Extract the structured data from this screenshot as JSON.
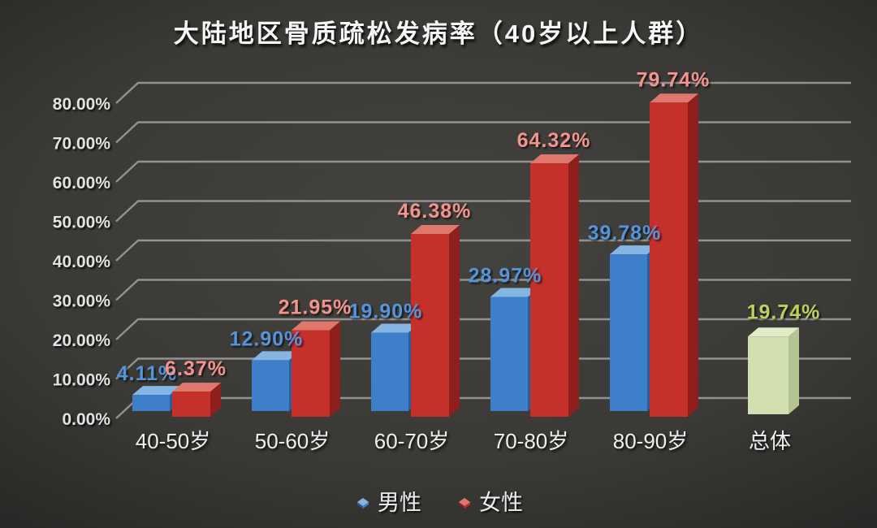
{
  "title": "大陆地区骨质疏松发病率（40岁以上人群）",
  "colors": {
    "background": "#3b3936",
    "gridline": "#9b9b9b",
    "male_front": "#3d7fc9",
    "male_top": "#85b5e2",
    "male_side": "#2a5d9e",
    "female_front": "#c5302b",
    "female_top": "#de786d",
    "female_side": "#8e1f1c",
    "overall_front": "#d2dfae",
    "overall_top": "#e2ecc9",
    "overall_side": "#b4c591",
    "male_label": "#5694da",
    "female_label": "#f2948d",
    "overall_label": "#bdd05b"
  },
  "chart_data": {
    "type": "bar",
    "style": "3d-column",
    "title": "大陆地区骨质疏松发病率（40岁以上人群）",
    "categories": [
      "40-50岁",
      "50-60岁",
      "60-70岁",
      "70-80岁",
      "80-90岁",
      "总体"
    ],
    "series": [
      {
        "name": "男性",
        "values": [
          4.11,
          12.9,
          19.9,
          28.97,
          39.78,
          null
        ],
        "labels": [
          "4.11%",
          "12.90%",
          "19.90%",
          "28.97%",
          "39.78%",
          null
        ]
      },
      {
        "name": "女性",
        "values": [
          6.37,
          21.95,
          46.38,
          64.32,
          79.74,
          null
        ],
        "labels": [
          "6.37%",
          "21.95%",
          "46.38%",
          "64.32%",
          "79.74%",
          null
        ]
      },
      {
        "name": "总体",
        "values": [
          null,
          null,
          null,
          null,
          null,
          19.74
        ],
        "labels": [
          null,
          null,
          null,
          null,
          null,
          "19.74%"
        ]
      }
    ],
    "y_axis": {
      "min": 0,
      "max": 80,
      "step": 10,
      "ticks": [
        "0.00%",
        "10.00%",
        "20.00%",
        "30.00%",
        "40.00%",
        "50.00%",
        "60.00%",
        "70.00%",
        "80.00%"
      ]
    },
    "grid": true,
    "legend_position": "bottom",
    "legend": [
      {
        "label": "男性"
      },
      {
        "label": "女性"
      }
    ]
  }
}
